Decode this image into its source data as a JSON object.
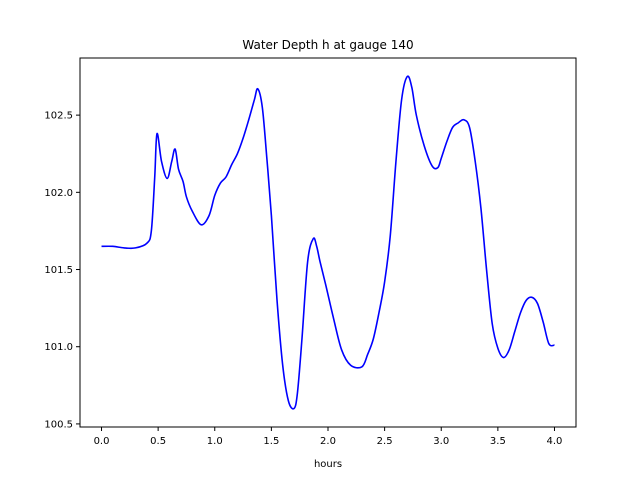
{
  "chart_data": {
    "type": "line",
    "title": "Water Depth h at gauge 140",
    "xlabel": "hours",
    "ylabel": "",
    "xlim": [
      -0.19,
      4.19
    ],
    "ylim": [
      100.48,
      102.87
    ],
    "xticks": [
      0.0,
      0.5,
      1.0,
      1.5,
      2.0,
      2.5,
      3.0,
      3.5,
      4.0
    ],
    "xtick_labels": [
      "0.0",
      "0.5",
      "1.0",
      "1.5",
      "2.0",
      "2.5",
      "3.0",
      "3.5",
      "4.0"
    ],
    "yticks": [
      100.5,
      101.0,
      101.5,
      102.0,
      102.5
    ],
    "ytick_labels": [
      "100.5",
      "101.0",
      "101.5",
      "102.0",
      "102.5"
    ],
    "grid": false,
    "series": [
      {
        "color": "#0000ff",
        "x": [
          0.0,
          0.1,
          0.2,
          0.3,
          0.4,
          0.44,
          0.47,
          0.49,
          0.53,
          0.58,
          0.62,
          0.65,
          0.68,
          0.72,
          0.75,
          0.8,
          0.88,
          0.95,
          1.0,
          1.05,
          1.1,
          1.15,
          1.2,
          1.25,
          1.3,
          1.35,
          1.38,
          1.42,
          1.46,
          1.5,
          1.55,
          1.6,
          1.65,
          1.7,
          1.73,
          1.77,
          1.82,
          1.87,
          1.9,
          1.93,
          1.98,
          2.05,
          2.12,
          2.2,
          2.3,
          2.35,
          2.4,
          2.45,
          2.5,
          2.55,
          2.6,
          2.65,
          2.7,
          2.74,
          2.78,
          2.85,
          2.92,
          2.97,
          3.0,
          3.05,
          3.1,
          3.15,
          3.2,
          3.25,
          3.3,
          3.35,
          3.4,
          3.45,
          3.5,
          3.55,
          3.6,
          3.65,
          3.7,
          3.75,
          3.8,
          3.85,
          3.9,
          3.95,
          4.0
        ],
        "y": [
          101.65,
          101.65,
          101.64,
          101.64,
          101.67,
          101.75,
          102.1,
          102.38,
          102.2,
          102.09,
          102.2,
          102.28,
          102.15,
          102.07,
          101.97,
          101.88,
          101.79,
          101.85,
          101.98,
          102.06,
          102.1,
          102.18,
          102.25,
          102.35,
          102.47,
          102.6,
          102.67,
          102.55,
          102.22,
          101.85,
          101.3,
          100.88,
          100.65,
          100.6,
          100.7,
          101.05,
          101.55,
          101.7,
          101.65,
          101.55,
          101.4,
          101.18,
          100.98,
          100.88,
          100.87,
          100.95,
          101.05,
          101.22,
          101.42,
          101.72,
          102.2,
          102.6,
          102.75,
          102.68,
          102.5,
          102.3,
          102.17,
          102.16,
          102.22,
          102.33,
          102.42,
          102.45,
          102.47,
          102.42,
          102.2,
          101.9,
          101.5,
          101.15,
          100.99,
          100.93,
          100.98,
          101.1,
          101.22,
          101.3,
          101.32,
          101.28,
          101.16,
          101.02,
          101.01
        ]
      }
    ]
  }
}
